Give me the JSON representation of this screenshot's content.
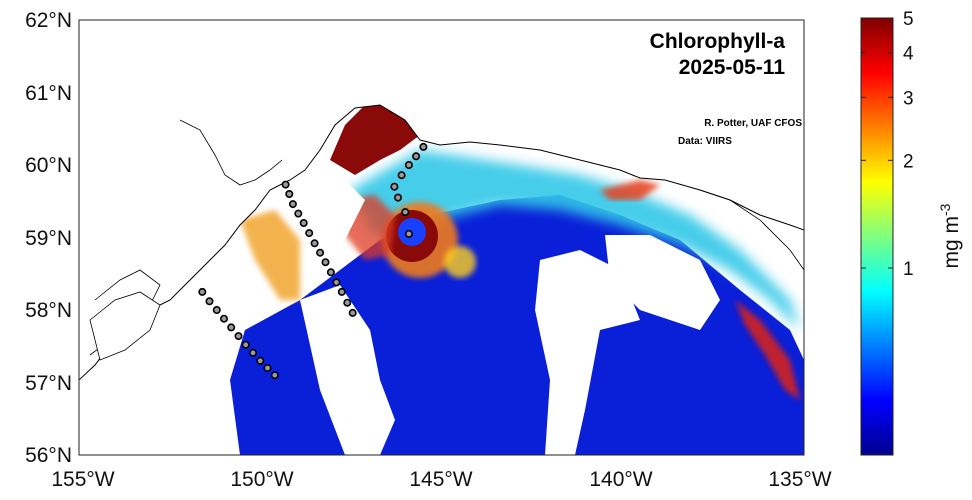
{
  "map": {
    "title": "Chlorophyll-a",
    "date": "2025-05-11",
    "credit_author": "R. Potter, UAF CFOS",
    "credit_data": "Data: VIIRS",
    "lat_ticks": [
      "62°N",
      "61°N",
      "60°N",
      "59°N",
      "58°N",
      "57°N",
      "56°N"
    ],
    "lon_ticks": [
      "155°W",
      "150°W",
      "145°W",
      "140°W",
      "135°W"
    ],
    "extent": {
      "lon_min": -155,
      "lon_max": -135,
      "lat_min": 56,
      "lat_max": 62
    }
  },
  "colorbar": {
    "label_main": "mg m",
    "label_exp": "-3",
    "ticks": [
      "5",
      "4",
      "3",
      "2",
      "1"
    ],
    "tick_values": [
      5,
      4,
      3,
      2,
      1
    ],
    "range": [
      0.3,
      5
    ],
    "scale": "log",
    "colormap": "jet"
  },
  "stations": [
    {
      "line": "southwest",
      "lons": [
        -151.6,
        -151.4,
        -151.2,
        -151.0,
        -150.8,
        -150.6,
        -150.4,
        -150.2,
        -150.0,
        -149.8,
        -149.6
      ],
      "lats": [
        58.25,
        58.12,
        58.0,
        57.88,
        57.76,
        57.64,
        57.52,
        57.41,
        57.3,
        57.2,
        57.1
      ]
    },
    {
      "line": "seward",
      "lons": [
        -149.3,
        -149.2,
        -149.1,
        -148.95,
        -148.8,
        -148.65,
        -148.5,
        -148.35,
        -148.2,
        -148.05,
        -147.9,
        -147.75,
        -147.6,
        -147.45
      ],
      "lats": [
        59.73,
        59.6,
        59.46,
        59.33,
        59.2,
        59.06,
        58.92,
        58.79,
        58.66,
        58.52,
        58.38,
        58.25,
        58.1,
        57.96
      ]
    },
    {
      "line": "middleton",
      "lons": [
        -145.5,
        -145.7,
        -145.9,
        -146.1,
        -146.3,
        -146.2,
        -146.0,
        -145.9
      ],
      "lats": [
        60.25,
        60.12,
        60.0,
        59.86,
        59.7,
        59.55,
        59.35,
        59.05
      ]
    }
  ]
}
